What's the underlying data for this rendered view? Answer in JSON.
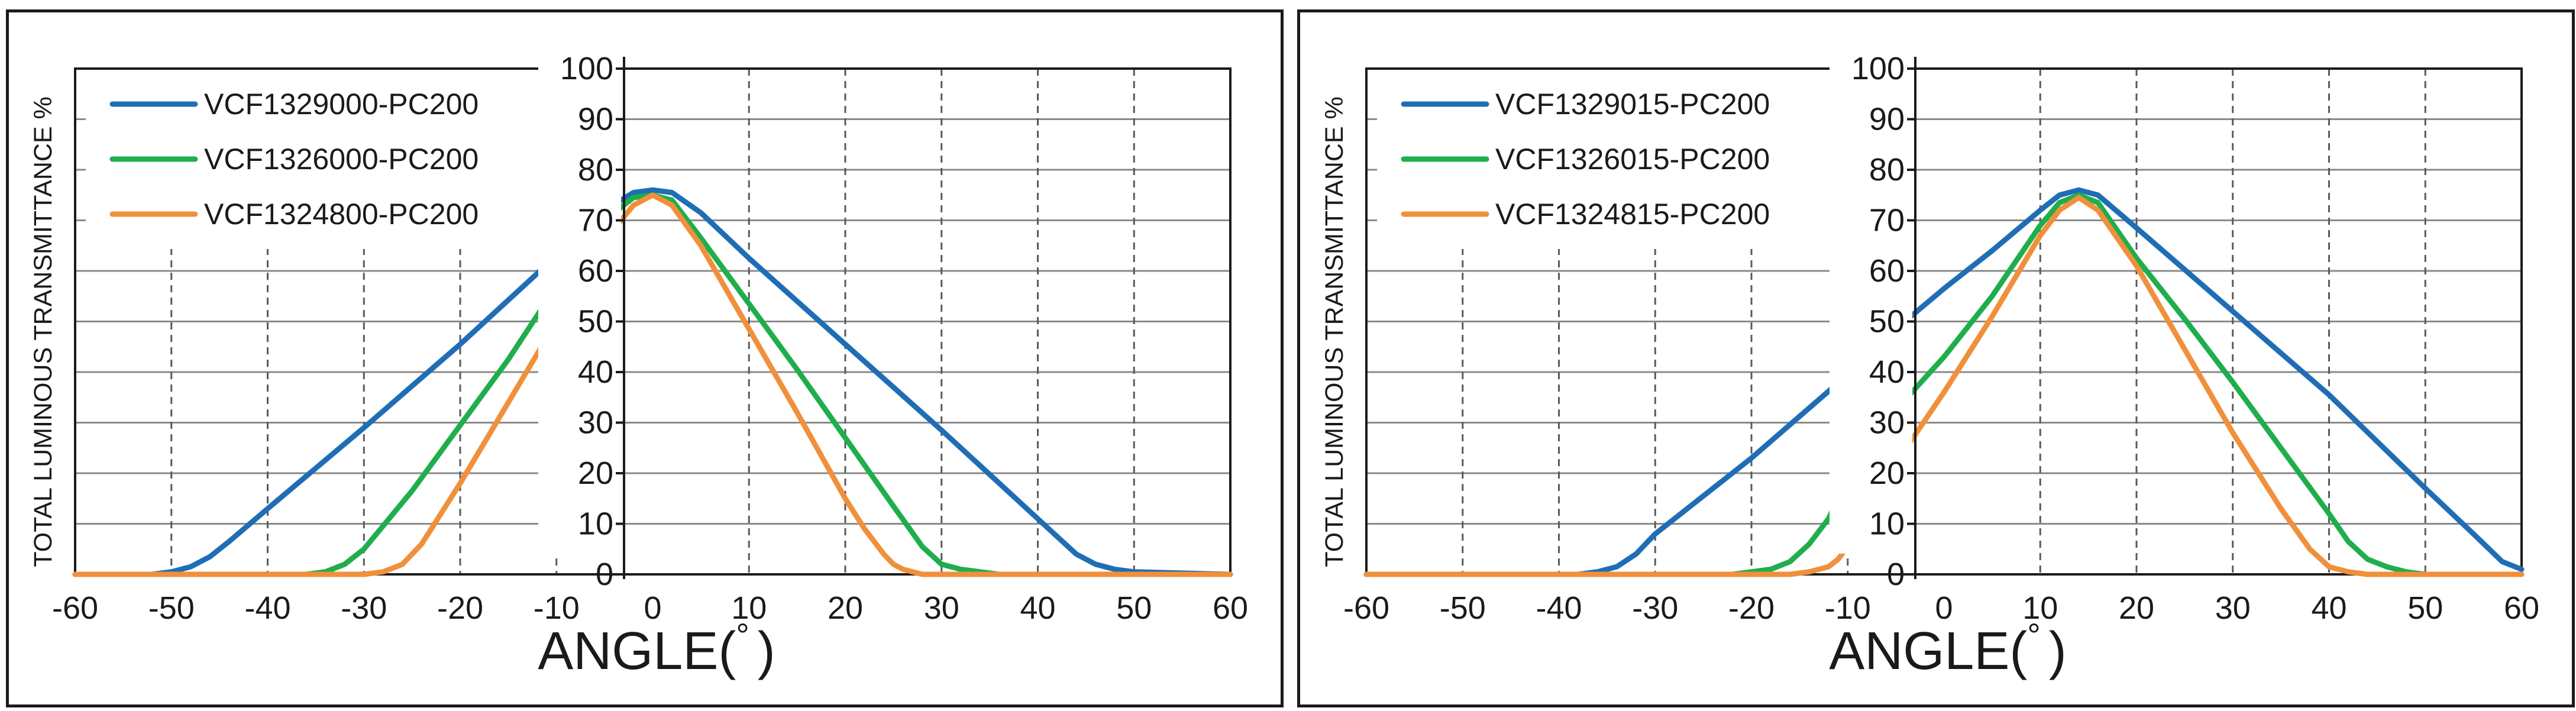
{
  "chart_data": [
    {
      "type": "line",
      "title": "",
      "xlabel": "ANGLE(°)",
      "xlabel_main": "ANGLE(",
      "xlabel_unit": "°",
      "xlabel_close": ")",
      "ylabel": "TOTAL LUMINOUS TRANSMITTANCE %",
      "xlim": [
        -60,
        60
      ],
      "ylim": [
        0,
        100
      ],
      "x_ticks": [
        -60,
        -50,
        -40,
        -30,
        -20,
        -10,
        0,
        10,
        20,
        30,
        40,
        50,
        60
      ],
      "x_tick_labels": [
        "-60",
        "-50",
        "-40",
        "-30",
        "-20",
        "-10",
        "0",
        "10",
        "20",
        "30",
        "40",
        "50",
        "60"
      ],
      "y_ticks": [
        0,
        10,
        20,
        30,
        40,
        50,
        60,
        70,
        80,
        90,
        100
      ],
      "y_tick_labels": [
        "0",
        "10",
        "20",
        "30",
        "40",
        "50",
        "60",
        "70",
        "80",
        "90",
        "100"
      ],
      "grid": true,
      "legend_position": "top-left",
      "series": [
        {
          "name": "VCF1329000-PC200",
          "color": "#1f6eb5",
          "x": [
            -60,
            -52,
            -50,
            -48,
            -46,
            -44,
            -40,
            -30,
            -20,
            -10,
            -5,
            -2,
            0,
            2,
            5,
            10,
            20,
            30,
            40,
            42,
            44,
            46,
            48,
            50,
            60
          ],
          "y": [
            0,
            0,
            0.5,
            1.5,
            3.5,
            6.5,
            13,
            29,
            45.5,
            63,
            72,
            75.5,
            76,
            75.5,
            71.5,
            62.5,
            45.5,
            28.5,
            11,
            7.5,
            4,
            2,
            1,
            0.5,
            0
          ]
        },
        {
          "name": "VCF1326000-PC200",
          "color": "#1fae4c",
          "x": [
            -60,
            -36,
            -34,
            -32,
            -30,
            -25,
            -20,
            -15,
            -10,
            -5,
            -2,
            0,
            2,
            5,
            10,
            15,
            20,
            25,
            28,
            30,
            32,
            34,
            36,
            60
          ],
          "y": [
            0,
            0,
            0.5,
            2,
            5,
            16.5,
            29.5,
            42.5,
            57,
            70,
            74.5,
            75,
            74,
            66.5,
            53.5,
            40.5,
            27,
            13.5,
            5.5,
            2,
            1,
            0.5,
            0,
            0
          ]
        },
        {
          "name": "VCF1324800-PC200",
          "color": "#f0903c",
          "x": [
            -60,
            -30,
            -28,
            -26,
            -24,
            -20,
            -15,
            -10,
            -5,
            -2,
            0,
            2,
            5,
            10,
            15,
            20,
            22,
            24,
            25,
            26,
            28,
            60
          ],
          "y": [
            0,
            0,
            0.5,
            2,
            6,
            18,
            34,
            50,
            66,
            73,
            75,
            73,
            65,
            48.5,
            32,
            15,
            9,
            4,
            2,
            1,
            0,
            0
          ]
        }
      ]
    },
    {
      "type": "line",
      "title": "",
      "xlabel": "ANGLE(°)",
      "xlabel_main": "ANGLE(",
      "xlabel_unit": "°",
      "xlabel_close": ")",
      "ylabel": "TOTAL LUMINOUS TRANSMITTANCE %",
      "xlim": [
        -60,
        60
      ],
      "ylim": [
        0,
        100
      ],
      "x_ticks": [
        -60,
        -50,
        -40,
        -30,
        -20,
        -10,
        0,
        10,
        20,
        30,
        40,
        50,
        60
      ],
      "x_tick_labels": [
        "-60",
        "-50",
        "-40",
        "-30",
        "-20",
        "-10",
        "0",
        "10",
        "20",
        "30",
        "40",
        "50",
        "60"
      ],
      "y_ticks": [
        0,
        10,
        20,
        30,
        40,
        50,
        60,
        70,
        80,
        90,
        100
      ],
      "y_tick_labels": [
        "0",
        "10",
        "20",
        "30",
        "40",
        "50",
        "60",
        "70",
        "80",
        "90",
        "100"
      ],
      "grid": true,
      "legend_position": "top-left",
      "series": [
        {
          "name": "VCF1329015-PC200",
          "color": "#1f6eb5",
          "x": [
            -60,
            -38,
            -36,
            -34,
            -32,
            -30,
            -20,
            -10,
            -5,
            0,
            5,
            10,
            12,
            14,
            16,
            20,
            30,
            40,
            50,
            55,
            58,
            60
          ],
          "y": [
            0,
            0,
            0.5,
            1.5,
            4,
            8,
            23,
            39.5,
            48.5,
            56.5,
            64,
            72,
            75,
            76,
            75,
            68.5,
            52,
            35.5,
            17,
            8,
            2.5,
            1
          ]
        },
        {
          "name": "VCF1326015-PC200",
          "color": "#1fae4c",
          "x": [
            -60,
            -22,
            -20,
            -18,
            -16,
            -14,
            -12,
            -10,
            -5,
            0,
            5,
            10,
            12,
            14,
            16,
            20,
            25,
            30,
            35,
            40,
            42,
            44,
            46,
            48,
            50,
            60
          ],
          "y": [
            0,
            0,
            0.5,
            1,
            2.5,
            6,
            11,
            19,
            32.5,
            43,
            55,
            69,
            73.5,
            75,
            73.5,
            62.5,
            50.5,
            38,
            25,
            12,
            6.5,
            3,
            1.5,
            0.5,
            0,
            0
          ]
        },
        {
          "name": "VCF1324815-PC200",
          "color": "#f0903c",
          "x": [
            -60,
            -16,
            -14,
            -12,
            -11,
            -10,
            -9,
            -5,
            0,
            5,
            10,
            12,
            14,
            16,
            20,
            25,
            30,
            35,
            38,
            40,
            42,
            44,
            60
          ],
          "y": [
            0,
            0,
            0.5,
            1.5,
            3,
            5.5,
            8.5,
            22,
            36,
            51,
            67,
            72,
            74.5,
            72,
            61,
            44.5,
            28,
            13,
            5,
            1.5,
            0.5,
            0,
            0
          ]
        }
      ]
    }
  ]
}
